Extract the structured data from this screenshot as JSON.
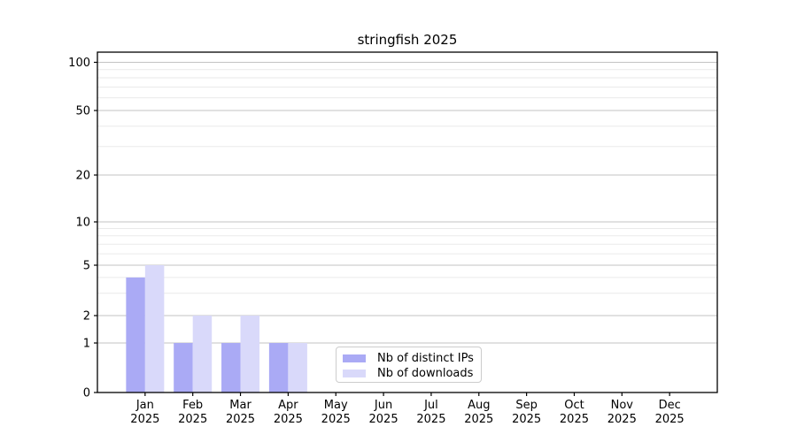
{
  "title": "stringfish 2025",
  "chart_data": {
    "type": "bar",
    "categories": [
      "Jan",
      "Feb",
      "Mar",
      "Apr",
      "May",
      "Jun",
      "Jul",
      "Aug",
      "Sep",
      "Oct",
      "Nov",
      "Dec"
    ],
    "year": "2025",
    "series": [
      {
        "name": "Nb of distinct IPs",
        "color": "#aaaaf5",
        "values": [
          4,
          1,
          1,
          1,
          0,
          0,
          0,
          0,
          0,
          0,
          0,
          0
        ]
      },
      {
        "name": "Nb of downloads",
        "color": "#d9d9fa",
        "values": [
          5,
          2,
          2,
          1,
          0,
          0,
          0,
          0,
          0,
          0,
          0,
          0
        ]
      }
    ],
    "yticks": [
      0,
      1,
      2,
      5,
      10,
      20,
      50,
      100
    ],
    "y_minor_ticks": [
      3,
      4,
      6,
      7,
      8,
      9,
      30,
      40,
      60,
      70,
      80,
      90
    ],
    "y_scale": "symlog",
    "ylim": [
      0,
      100
    ],
    "grid": {
      "horizontal_major": true,
      "horizontal_minor": true,
      "vertical": false
    },
    "legend_position": "inside-lower-center"
  },
  "colors": {
    "background": "#ffffff",
    "axis": "#000000",
    "major_grid": "#c3c3c3",
    "minor_grid": "#eaeaea",
    "text": "#000000",
    "legend_border": "#cccccc"
  }
}
